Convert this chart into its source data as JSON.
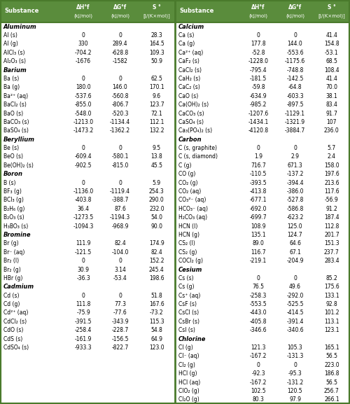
{
  "header_bg": "#5a8c3c",
  "header_text_color": "#ffffff",
  "body_bg": "#ffffff",
  "section_bg": "#ffffff",
  "border_color": "#4a7a2c",
  "col_headers_line1": [
    "Substance",
    "ΔH°f",
    "ΔG°f",
    "S °"
  ],
  "col_headers_line2": [
    "",
    "(kJ/mol)",
    "(kJ/mol)",
    "[J/(K×mol)]"
  ],
  "left_sections": [
    {
      "section": "Aluminum",
      "rows": [
        [
          "Al (s)",
          "0",
          "0",
          "28.3"
        ],
        [
          "Al (g)",
          "330",
          "289.4",
          "164.5"
        ],
        [
          "AlCl₃ (s)",
          "-704.2",
          "-628.8",
          "109.3"
        ],
        [
          "Al₂O₃ (s)",
          "-1676",
          "-1582",
          "50.9"
        ]
      ]
    },
    {
      "section": "Barium",
      "rows": [
        [
          "Ba (s)",
          "0",
          "0",
          "62.5"
        ],
        [
          "Ba (g)",
          "180.0",
          "146.0",
          "170.1"
        ],
        [
          "Ba²⁺ (aq)",
          "-537.6",
          "-560.8",
          "9.6"
        ],
        [
          "BaCl₂ (s)",
          "-855.0",
          "-806.7",
          "123.7"
        ],
        [
          "BaO (s)",
          "-548.0",
          "-520.3",
          "72.1"
        ],
        [
          "BaCO₃ (s)",
          "-1213.0",
          "-1134.4",
          "112.1"
        ],
        [
          "BaSO₄ (s)",
          "-1473.2",
          "-1362.2",
          "132.2"
        ]
      ]
    },
    {
      "section": "Beryllium",
      "rows": [
        [
          "Be (s)",
          "0",
          "0",
          "9.5"
        ],
        [
          "BeO (s)",
          "-609.4",
          "-580.1",
          "13.8"
        ],
        [
          "Be(OH)₂ (s)",
          "-902.5",
          "-815.0",
          "45.5"
        ]
      ]
    },
    {
      "section": "Boron",
      "rows": [
        [
          "B (s)",
          "0",
          "0",
          "5.9"
        ],
        [
          "BF₃ (g)",
          "-1136.0",
          "-1119.4",
          "254.3"
        ],
        [
          "BCl₃ (g)",
          "-403.8",
          "-388.7",
          "290.0"
        ],
        [
          "B₂H₆ (g)",
          "36.4",
          "87.6",
          "232.0"
        ],
        [
          "B₂O₃ (s)",
          "-1273.5",
          "-1194.3",
          "54.0"
        ],
        [
          "H₃BO₃ (s)",
          "-1094.3",
          "-968.9",
          "90.0"
        ]
      ]
    },
    {
      "section": "Bromine",
      "rows": [
        [
          "Br (g)",
          "111.9",
          "82.4",
          "174.9"
        ],
        [
          "Br⁻ (aq)",
          "-121.5",
          "-104.0",
          "82.4"
        ],
        [
          "Br₂ (l)",
          "0",
          "0",
          "152.2"
        ],
        [
          "Br₂ (g)",
          "30.9",
          "3.14",
          "245.4"
        ],
        [
          "HBr (g)",
          "-36.3",
          "-53.4",
          "198.6"
        ]
      ]
    },
    {
      "section": "Cadmium",
      "rows": [
        [
          "Cd (s)",
          "0",
          "0",
          "51.8"
        ],
        [
          "Cd (g)",
          "111.8",
          "77.3",
          "167.6"
        ],
        [
          "Cd²⁺ (aq)",
          "-75.9",
          "-77.6",
          "-73.2"
        ],
        [
          "CdCl₂ (s)",
          "-391.5",
          "-343.9",
          "115.3"
        ],
        [
          "CdO (s)",
          "-258.4",
          "-228.7",
          "54.8"
        ],
        [
          "CdS (s)",
          "-161.9",
          "-156.5",
          "64.9"
        ],
        [
          "CdSO₄ (s)",
          "-933.3",
          "-822.7",
          "123.0"
        ]
      ]
    }
  ],
  "right_sections": [
    {
      "section": "Calcium",
      "rows": [
        [
          "Ca (s)",
          "0",
          "0",
          "41.4"
        ],
        [
          "Ca (g)",
          "177.8",
          "144.0",
          "154.8"
        ],
        [
          "Ca²⁺ (aq)",
          "-52.8",
          "-553.6",
          "-53.1"
        ],
        [
          "CaF₂ (s)",
          "-1228.0",
          "-1175.6",
          "68.5"
        ],
        [
          "CaCl₂ (s)",
          "-795.4",
          "-748.8",
          "108.4"
        ],
        [
          "CaH₂ (s)",
          "-181.5",
          "-142.5",
          "41.4"
        ],
        [
          "CaC₂ (s)",
          "-59.8",
          "-64.8",
          "70.0"
        ],
        [
          "CaO (s)",
          "-634.9",
          "-603.3",
          "38.1"
        ],
        [
          "Ca(OH)₂ (s)",
          "-985.2",
          "-897.5",
          "83.4"
        ],
        [
          "CaCO₃ (s)",
          "-1207.6",
          "-1129.1",
          "91.7"
        ],
        [
          "CaSO₄ (s)",
          "-1434.1",
          "-1321.9",
          "107"
        ],
        [
          "Ca₃(PO₄)₂ (s)",
          "-4120.8",
          "-3884.7",
          "236.0"
        ]
      ]
    },
    {
      "section": "Carbon",
      "rows": [
        [
          "C (s, graphite)",
          "0",
          "0",
          "5.7"
        ],
        [
          "C (s, diamond)",
          "1.9",
          "2.9",
          "2.4"
        ],
        [
          "C (g)",
          "716.7",
          "671.3",
          "158.0"
        ],
        [
          "CO (g)",
          "-110.5",
          "-137.2",
          "197.6"
        ],
        [
          "CO₂ (g)",
          "-393.5",
          "-394.4",
          "213.6"
        ],
        [
          "CO₂ (aq)",
          "-413.8",
          "-386.0",
          "117.6"
        ],
        [
          "CO₃²⁻ (aq)",
          "-677.1",
          "-527.8",
          "-56.9"
        ],
        [
          "HCO₃⁻ (aq)",
          "-692.0",
          "-586.8",
          "91.2"
        ],
        [
          "H₂CO₃ (aq)",
          "-699.7",
          "-623.2",
          "187.4"
        ],
        [
          "HCN (l)",
          "108.9",
          "125.0",
          "112.8"
        ],
        [
          "HCN (g)",
          "135.1",
          "124.7",
          "201.7"
        ],
        [
          "CS₂ (l)",
          "89.0",
          "64.6",
          "151.3"
        ],
        [
          "CS₂ (g)",
          "116.7",
          "67.1",
          "237.7"
        ],
        [
          "COCl₂ (g)",
          "-219.1",
          "-204.9",
          "283.4"
        ]
      ]
    },
    {
      "section": "Cesium",
      "rows": [
        [
          "Cs (s)",
          "0",
          "0",
          "85.2"
        ],
        [
          "Cs (g)",
          "76.5",
          "49.6",
          "175.6"
        ],
        [
          "Cs⁺ (aq)",
          "-258.3",
          "-292.0",
          "133.1"
        ],
        [
          "CsF (s)",
          "-553.5",
          "-525.5",
          "92.8"
        ],
        [
          "CsCl (s)",
          "-443.0",
          "-414.5",
          "101.2"
        ],
        [
          "CsBr (s)",
          "-405.8",
          "-391.4",
          "113.1"
        ],
        [
          "CsI (s)",
          "-346.6",
          "-340.6",
          "123.1"
        ]
      ]
    },
    {
      "section": "Chlorine",
      "rows": [
        [
          "Cl (g)",
          "121.3",
          "105.3",
          "165.1"
        ],
        [
          "Cl⁻ (aq)",
          "-167.2",
          "-131.3",
          "56.5"
        ],
        [
          "Cl₂ (g)",
          "0",
          "0",
          "223.0"
        ],
        [
          "HCl (g)",
          "-92.3",
          "-95.3",
          "186.8"
        ],
        [
          "HCl (aq)",
          "-167.2",
          "-131.2",
          "56.5"
        ],
        [
          "ClO₂ (g)",
          "102.5",
          "120.5",
          "256.7"
        ],
        [
          "Cl₂O (g)",
          "80.3",
          "97.9",
          "266.1"
        ]
      ]
    }
  ]
}
